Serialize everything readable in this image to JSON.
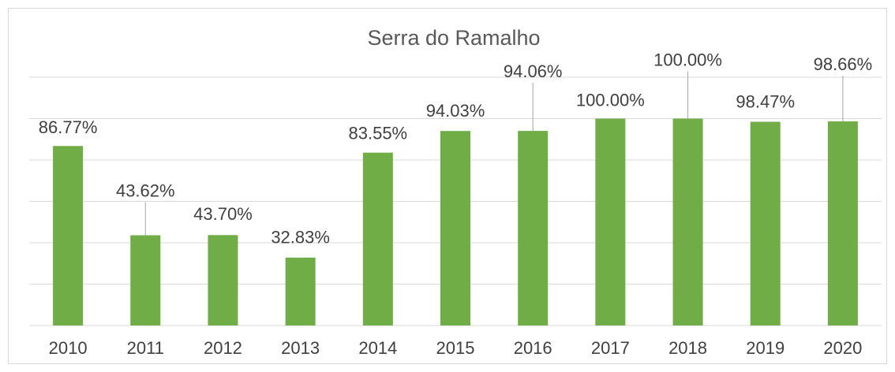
{
  "chart_data": {
    "type": "bar",
    "title": "Serra do Ramalho",
    "categories": [
      "2010",
      "2011",
      "2012",
      "2013",
      "2014",
      "2015",
      "2016",
      "2017",
      "2018",
      "2019",
      "2020"
    ],
    "values": [
      86.77,
      43.62,
      43.7,
      32.83,
      83.55,
      94.03,
      94.06,
      100.0,
      100.0,
      98.47,
      98.66
    ],
    "value_labels": [
      "86.77%",
      "43.62%",
      "43.70%",
      "32.83%",
      "83.55%",
      "94.03%",
      "94.06%",
      "100.00%",
      "100.00%",
      "98.47%",
      "98.66%"
    ],
    "color": "#70ad47",
    "ylim": [
      0,
      120
    ],
    "yticks": [
      0,
      20,
      40,
      60,
      80,
      100,
      120
    ],
    "grid": true
  }
}
